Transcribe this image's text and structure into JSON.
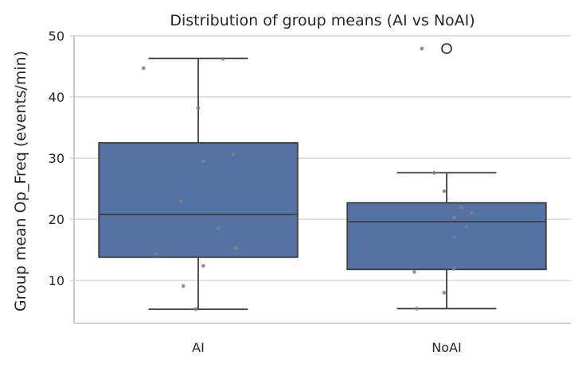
{
  "chart_data": {
    "type": "box",
    "title": "Distribution of group means (AI vs NoAI)",
    "xlabel": "",
    "ylabel": "Group mean Op_Freq (events/min)",
    "ylim": [
      3,
      50
    ],
    "yticks": [
      10,
      20,
      30,
      40,
      50
    ],
    "grid": "horizontal",
    "box_color": "#5572a4",
    "categories": [
      "AI",
      "NoAI"
    ],
    "boxes": [
      {
        "name": "AI",
        "whisker_low": 5.3,
        "q1": 13.8,
        "median": 20.8,
        "q3": 32.5,
        "whisker_high": 46.3,
        "outliers": [],
        "points": [
          {
            "x": -0.22,
            "y": 44.7
          },
          {
            "x": 0.1,
            "y": 46.2
          },
          {
            "x": 0.0,
            "y": 38.2
          },
          {
            "x": 0.14,
            "y": 30.6
          },
          {
            "x": 0.02,
            "y": 29.5
          },
          {
            "x": -0.07,
            "y": 23.0
          },
          {
            "x": 0.08,
            "y": 18.5
          },
          {
            "x": 0.15,
            "y": 15.2
          },
          {
            "x": -0.17,
            "y": 14.3
          },
          {
            "x": 0.02,
            "y": 12.4
          },
          {
            "x": -0.06,
            "y": 9.1
          },
          {
            "x": -0.01,
            "y": 5.3
          }
        ]
      },
      {
        "name": "NoAI",
        "whisker_low": 5.4,
        "q1": 11.8,
        "median": 19.6,
        "q3": 22.7,
        "whisker_high": 27.6,
        "outliers": [
          47.9
        ],
        "points": [
          {
            "x": -0.1,
            "y": 47.9
          },
          {
            "x": -0.05,
            "y": 27.6
          },
          {
            "x": -0.01,
            "y": 24.6
          },
          {
            "x": 0.06,
            "y": 22.0
          },
          {
            "x": 0.1,
            "y": 21.1
          },
          {
            "x": 0.03,
            "y": 20.3
          },
          {
            "x": 0.08,
            "y": 18.8
          },
          {
            "x": 0.03,
            "y": 17.0
          },
          {
            "x": 0.03,
            "y": 11.9
          },
          {
            "x": -0.13,
            "y": 11.4
          },
          {
            "x": -0.01,
            "y": 8.0
          },
          {
            "x": -0.12,
            "y": 5.4
          }
        ]
      }
    ]
  }
}
